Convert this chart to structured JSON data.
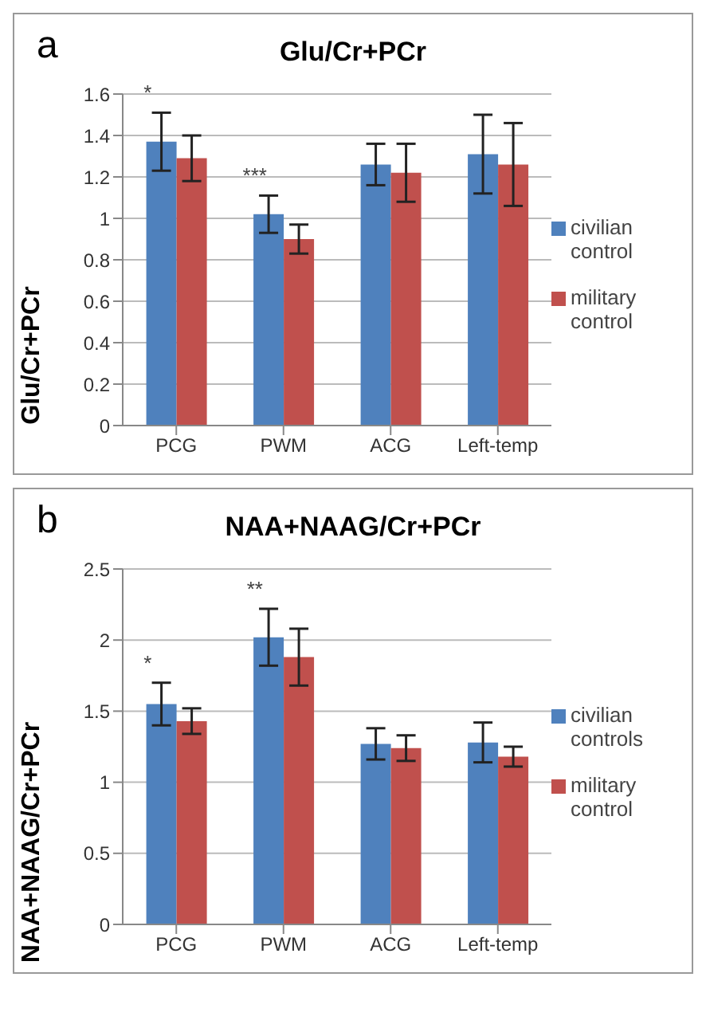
{
  "chart_data": [
    {
      "type": "bar",
      "title": "Glu/Cr+PCr",
      "ylabel": "Glu/Cr+PCr",
      "categories": [
        "PCG",
        "PWM",
        "ACG",
        "Left-temp"
      ],
      "series": [
        {
          "name": "civilian control",
          "color": "#4f81bd",
          "values": [
            1.37,
            1.02,
            1.26,
            1.31
          ],
          "errors": [
            0.14,
            0.09,
            0.1,
            0.19
          ]
        },
        {
          "name": "military control",
          "color": "#c0504d",
          "values": [
            1.29,
            0.9,
            1.22,
            1.26
          ],
          "errors": [
            0.11,
            0.07,
            0.14,
            0.2
          ]
        }
      ],
      "ylim": [
        0,
        1.6
      ],
      "yticks": [
        0,
        0.2,
        0.4,
        0.6,
        0.8,
        1,
        1.2,
        1.4,
        1.6
      ],
      "grid": "y",
      "legend": "right",
      "annotations": [
        "a",
        {
          "text": "*",
          "x": "PCG",
          "y": 1.51
        },
        {
          "text": "***",
          "x": "PWM",
          "y": 1.11
        }
      ]
    },
    {
      "type": "bar",
      "title": "NAA+NAAG/Cr+PCr",
      "ylabel": "NAA+NAAG/Cr+PCr",
      "categories": [
        "PCG",
        "PWM",
        "ACG",
        "Left-temp"
      ],
      "series": [
        {
          "name": "civilian controls",
          "color": "#4f81bd",
          "values": [
            1.55,
            2.02,
            1.27,
            1.28
          ],
          "errors": [
            0.15,
            0.2,
            0.11,
            0.14
          ]
        },
        {
          "name": "military control",
          "color": "#c0504d",
          "values": [
            1.43,
            1.88,
            1.24,
            1.18
          ],
          "errors": [
            0.09,
            0.2,
            0.09,
            0.07
          ]
        }
      ],
      "ylim": [
        0,
        2.5
      ],
      "yticks": [
        0,
        0.5,
        1,
        1.5,
        2,
        2.5
      ],
      "grid": "y",
      "legend": "right",
      "annotations": [
        "b",
        {
          "text": "*",
          "x": "PCG",
          "y": 1.7
        },
        {
          "text": "**",
          "x": "PWM",
          "y": 2.22
        }
      ]
    }
  ]
}
